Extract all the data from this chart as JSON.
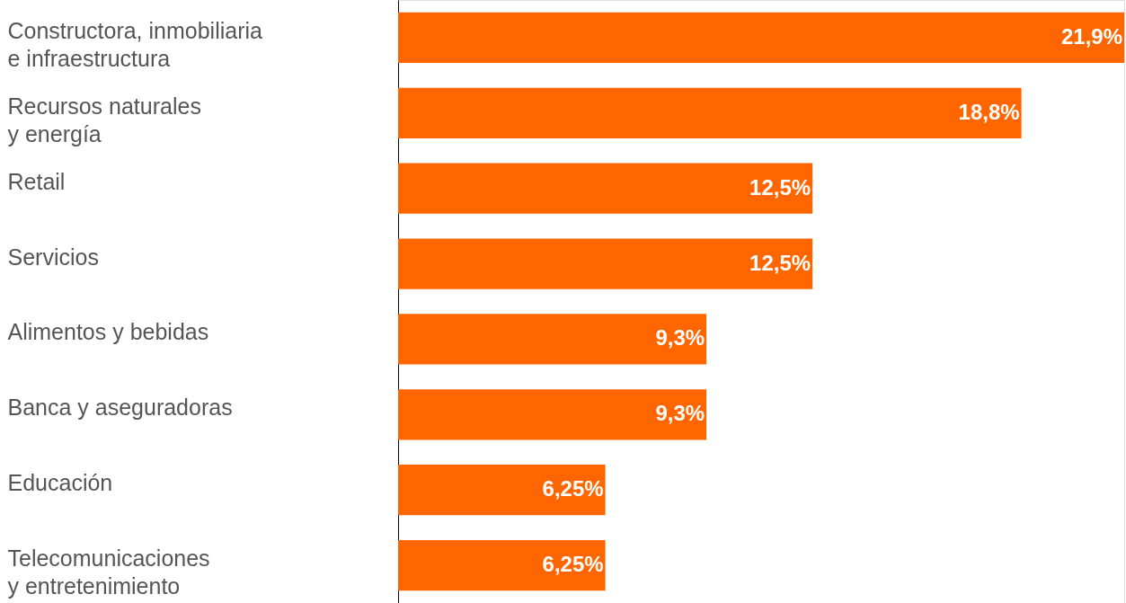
{
  "chart_data": {
    "type": "bar",
    "orientation": "horizontal",
    "categories": [
      "Constructora, inmobiliaria\ne infraestructura",
      "Recursos naturales\ny energía",
      "Retail",
      "Servicios",
      "Alimentos y bebidas",
      "Banca y aseguradoras",
      "Educación",
      "Telecomunicaciones\n y entretenimiento"
    ],
    "values": [
      21.9,
      18.8,
      12.5,
      12.5,
      9.3,
      9.3,
      6.25,
      6.25
    ],
    "value_labels": [
      "21,9%",
      "18,8%",
      "12,5%",
      "12,5%",
      "9,3%",
      "9,3%",
      "6,25%",
      "6,25%"
    ],
    "color": "#ff6600",
    "grid": false
  }
}
